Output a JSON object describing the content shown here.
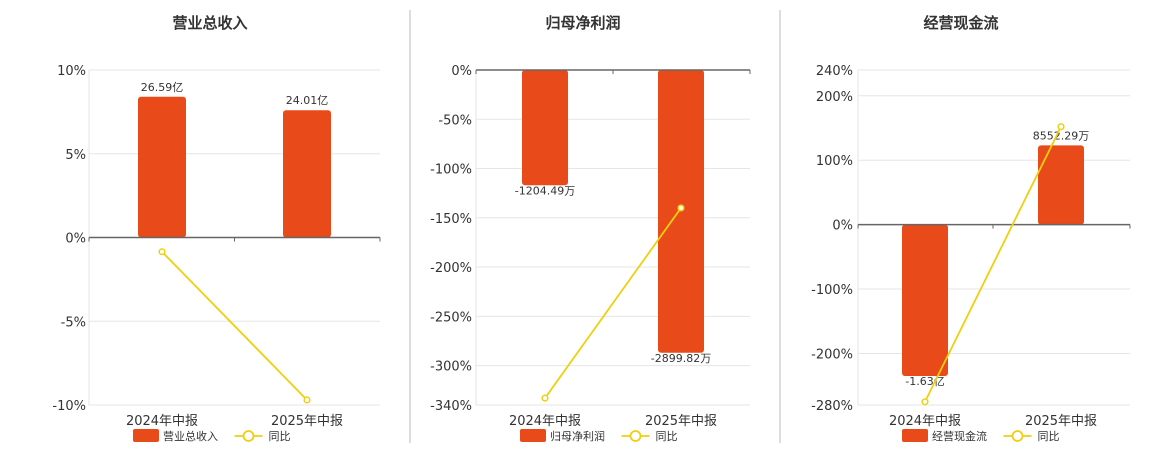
{
  "colors": {
    "bar": "#e84a1a",
    "line": "#f0cf0e",
    "axis": "#666666",
    "grid": "#e6e6e6",
    "divider": "#bbbbbb",
    "text": "#333333"
  },
  "chart_data": [
    {
      "type": "bar",
      "title": "营业总收入",
      "categories": [
        "2024年中报",
        "2025年中报"
      ],
      "series": [
        {
          "name": "营业总收入",
          "type": "bar",
          "values": [
            8.4,
            7.6
          ],
          "labels": [
            "26.59亿",
            "24.01亿"
          ]
        },
        {
          "name": "同比",
          "type": "line",
          "values": [
            -0.85,
            -9.7
          ]
        }
      ],
      "ylim": [
        -10,
        10
      ],
      "yticks": [
        10,
        5,
        0,
        -5,
        -10
      ],
      "ytick_labels": [
        "10%",
        "5%",
        "0%",
        "-5%",
        "-10%"
      ],
      "legend": "bottom",
      "grid": true
    },
    {
      "type": "bar",
      "title": "归母净利润",
      "categories": [
        "2024年中报",
        "2025年中报"
      ],
      "series": [
        {
          "name": "归母净利润",
          "type": "bar",
          "values": [
            -117,
            -287
          ],
          "labels": [
            "-1204.49万",
            "-2899.82万"
          ]
        },
        {
          "name": "同比",
          "type": "line",
          "values": [
            -333,
            -140
          ]
        }
      ],
      "ylim": [
        -340,
        0
      ],
      "yticks": [
        0,
        -50,
        -100,
        -150,
        -200,
        -250,
        -300,
        -340
      ],
      "ytick_labels": [
        "0%",
        "-50%",
        "-100%",
        "-150%",
        "-200%",
        "-250%",
        "-300%",
        "-340%"
      ],
      "legend": "bottom",
      "grid": true
    },
    {
      "type": "bar",
      "title": "经营现金流",
      "categories": [
        "2024年中报",
        "2025年中报"
      ],
      "series": [
        {
          "name": "经营现金流",
          "type": "bar",
          "values": [
            -235,
            123
          ],
          "labels": [
            "-1.63亿",
            "8552.29万"
          ]
        },
        {
          "name": "同比",
          "type": "line",
          "values": [
            -275,
            152
          ]
        }
      ],
      "ylim": [
        -280,
        240
      ],
      "yticks": [
        240,
        200,
        100,
        0,
        -100,
        -200,
        -280
      ],
      "ytick_labels": [
        "240%",
        "200%",
        "100%",
        "0%",
        "-100%",
        "-200%",
        "-280%"
      ],
      "legend": "bottom",
      "grid": true
    }
  ]
}
